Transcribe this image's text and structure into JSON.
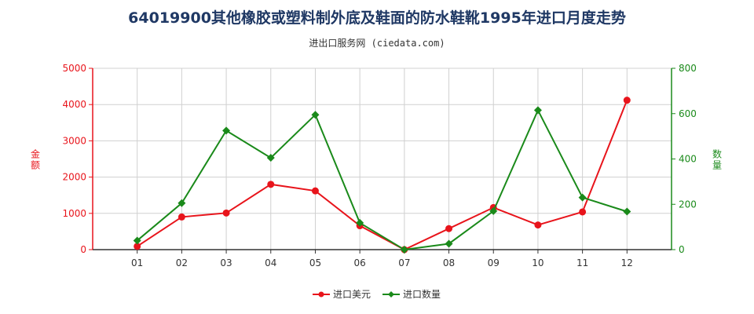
{
  "title": "64019900其他橡胶或塑料制外底及鞋面的防水鞋靴1995年进口月度走势",
  "subtitle": "进出口服务网 (ciedata.com)",
  "chart_data": {
    "type": "line",
    "categories": [
      "01",
      "02",
      "03",
      "04",
      "05",
      "06",
      "07",
      "08",
      "09",
      "10",
      "11",
      "12"
    ],
    "series": [
      {
        "name": "进口美元",
        "axis": "left",
        "color": "#e8141b",
        "values": [
          90,
          900,
          1010,
          1800,
          1620,
          660,
          0,
          580,
          1160,
          680,
          1040,
          4120
        ]
      },
      {
        "name": "进口数量",
        "axis": "right",
        "color": "#1a8a1a",
        "values": [
          40,
          205,
          525,
          405,
          595,
          118,
          0,
          26,
          170,
          615,
          230,
          168
        ]
      }
    ],
    "y_left": {
      "label": "金额",
      "min": 0,
      "max": 5000,
      "ticks": [
        "0",
        "1000",
        "2000",
        "3000",
        "4000",
        "5000"
      ],
      "color": "#e8141b"
    },
    "y_right": {
      "label": "数量",
      "min": 0,
      "max": 800,
      "ticks": [
        "0",
        "200",
        "400",
        "600",
        "800"
      ],
      "color": "#1a8a1a"
    },
    "grid": true,
    "legend_position": "bottom"
  }
}
